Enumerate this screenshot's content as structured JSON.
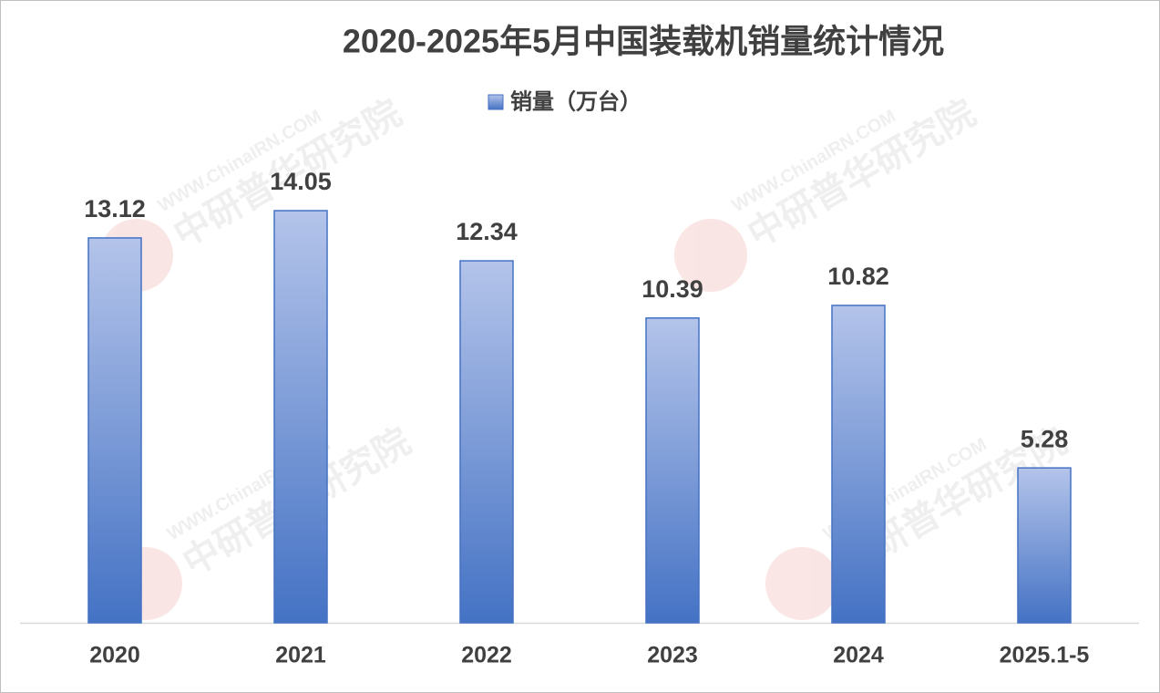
{
  "chart_data": {
    "type": "bar",
    "title": "2020-2025年5月中国装载机销量统计情况",
    "categories": [
      "2020",
      "2021",
      "2022",
      "2023",
      "2024",
      "2025.1-5"
    ],
    "series": [
      {
        "name": "销量（万台）",
        "color": "#4472c4",
        "values": [
          13.12,
          14.05,
          12.34,
          10.39,
          10.82,
          5.28
        ]
      }
    ],
    "watermark": [
      "WWW.ChinaIRN.COM",
      "中研普华研究院"
    ]
  }
}
